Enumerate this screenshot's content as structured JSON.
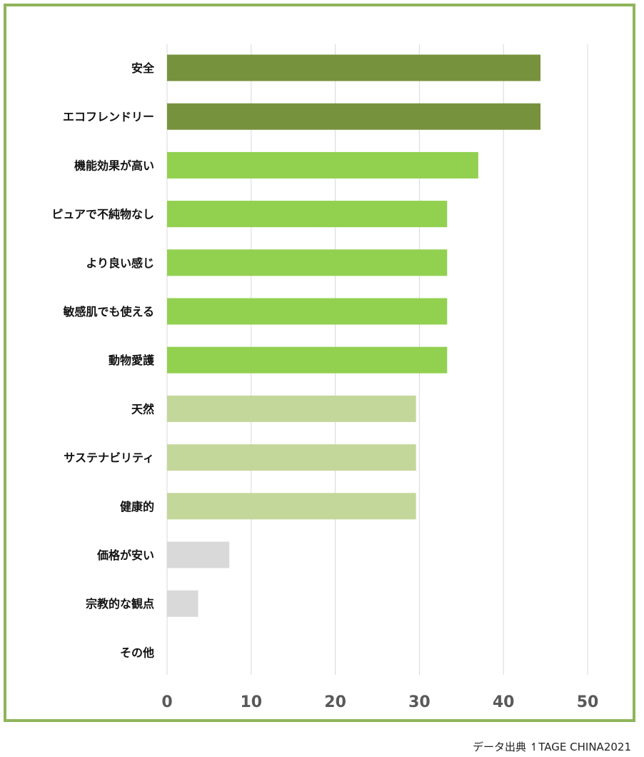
{
  "source_note": "データ出典 ↿TAGE CHINA2021",
  "colors": {
    "frame": "#8fb55a",
    "dark_green": "#77923c",
    "mid_green": "#92d050",
    "light_green": "#c4d79b",
    "gray": "#d9d9d9",
    "grid": "#d9d9d9",
    "tick_text": "#595959"
  },
  "chart_data": {
    "type": "bar",
    "orientation": "horizontal",
    "categories": [
      "安全",
      "エコフレンドリー",
      "機能効果が高い",
      "ピュアで不純物なし",
      "より良い感じ",
      "敏感肌でも使える",
      "動物愛護",
      "天然",
      "サステナビリティ",
      "健康的",
      "価格が安い",
      "宗教的な観点",
      "その他"
    ],
    "values": [
      44.4,
      44.4,
      37.0,
      33.3,
      33.3,
      33.3,
      33.3,
      29.6,
      29.6,
      29.6,
      7.4,
      3.7,
      0
    ],
    "bar_colors": [
      "#77923c",
      "#77923c",
      "#92d050",
      "#92d050",
      "#92d050",
      "#92d050",
      "#92d050",
      "#c4d79b",
      "#c4d79b",
      "#c4d79b",
      "#d9d9d9",
      "#d9d9d9",
      "#d9d9d9"
    ],
    "xlim": [
      0,
      50
    ],
    "xticks": [
      0,
      10,
      20,
      30,
      40,
      50
    ],
    "title": "",
    "xlabel": "",
    "ylabel": "",
    "grid": true,
    "legend": "none"
  }
}
